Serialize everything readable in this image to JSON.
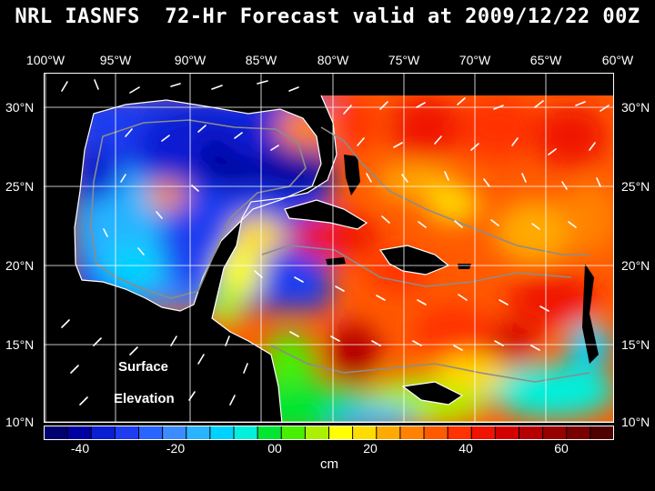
{
  "title": "NRL IASNFS  72-Hr Forecast valid at 2009/12/22 00Z",
  "lon_labels": [
    "100°W",
    "95°W",
    "90°W",
    "85°W",
    "80°W",
    "75°W",
    "70°W",
    "65°W",
    "60°W"
  ],
  "lat_labels_left": [
    "30°N",
    "25°N",
    "20°N",
    "15°N",
    "10°N"
  ],
  "lat_labels_right": [
    "30°N",
    "25°N",
    "20°N",
    "15°N",
    "10°N"
  ],
  "map_label_line1": "Surface",
  "map_label_line2": "Elevation",
  "colorbar": {
    "ticks": [
      "-40",
      "-20",
      "00",
      "20",
      "40",
      "60"
    ],
    "unit": "cm",
    "colors": [
      "#00006e",
      "#0000a0",
      "#0a1ed2",
      "#1e3cf0",
      "#2864ff",
      "#3c8cff",
      "#28b4ff",
      "#00d2ff",
      "#00f0dc",
      "#00e632",
      "#46f000",
      "#aaf000",
      "#ffff00",
      "#ffdc00",
      "#ffaa00",
      "#ff8200",
      "#ff5a00",
      "#ff3200",
      "#f01400",
      "#d20000",
      "#b40000",
      "#960000",
      "#780000",
      "#500000"
    ]
  },
  "colors": {
    "background": "#000000",
    "land": "#000000",
    "grid": "#ffffff",
    "contour": "#8c8c8c"
  }
}
